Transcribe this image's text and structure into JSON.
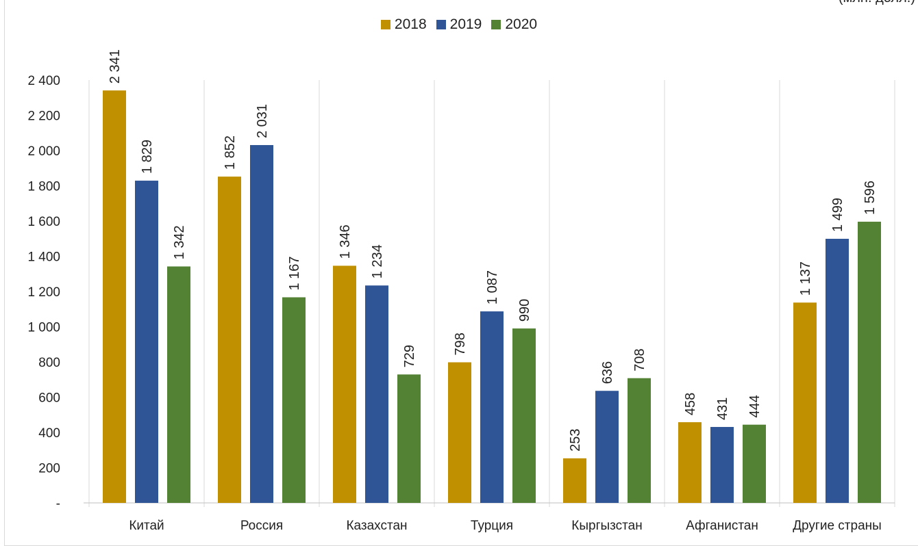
{
  "corner_note": "(млн. долл.)",
  "colors": {
    "2018": "#C09000",
    "2019": "#2F5597",
    "2020": "#548235",
    "grid": "#d9d9d9",
    "axis": "#bfbfbf",
    "text": "#222222"
  },
  "chart_data": {
    "type": "bar",
    "title": "",
    "xlabel": "",
    "ylabel": "",
    "categories": [
      "Китай",
      "Россия",
      "Казахстан",
      "Турция",
      "Кыргызстан",
      "Афганистан",
      "Другие страны"
    ],
    "series": [
      {
        "name": "2018",
        "values": [
          2341,
          1852,
          1346,
          798,
          253,
          458,
          1137
        ],
        "labels": [
          "2 341",
          "1 852",
          "1 346",
          "798",
          "253",
          "458",
          "1 137"
        ]
      },
      {
        "name": "2019",
        "values": [
          1829,
          2031,
          1234,
          1087,
          636,
          431,
          1499
        ],
        "labels": [
          "1 829",
          "2 031",
          "1 234",
          "1 087",
          "636",
          "431",
          "1 499"
        ]
      },
      {
        "name": "2020",
        "values": [
          1342,
          1167,
          729,
          990,
          708,
          444,
          1596
        ],
        "labels": [
          "1 342",
          "1 167",
          "729",
          "990",
          "708",
          "444",
          "1 596"
        ]
      }
    ],
    "ylim": [
      0,
      2400
    ],
    "yticks": [
      0,
      200,
      400,
      600,
      800,
      1000,
      1200,
      1400,
      1600,
      1800,
      2000,
      2200,
      2400
    ],
    "ytick_labels": [
      "-",
      "200",
      "400",
      "600",
      "800",
      "1 000",
      "1 200",
      "1 400",
      "1 600",
      "1 800",
      "2 000",
      "2 200",
      "2 400"
    ],
    "grid": "vertical category separators",
    "legend": "top-center"
  }
}
